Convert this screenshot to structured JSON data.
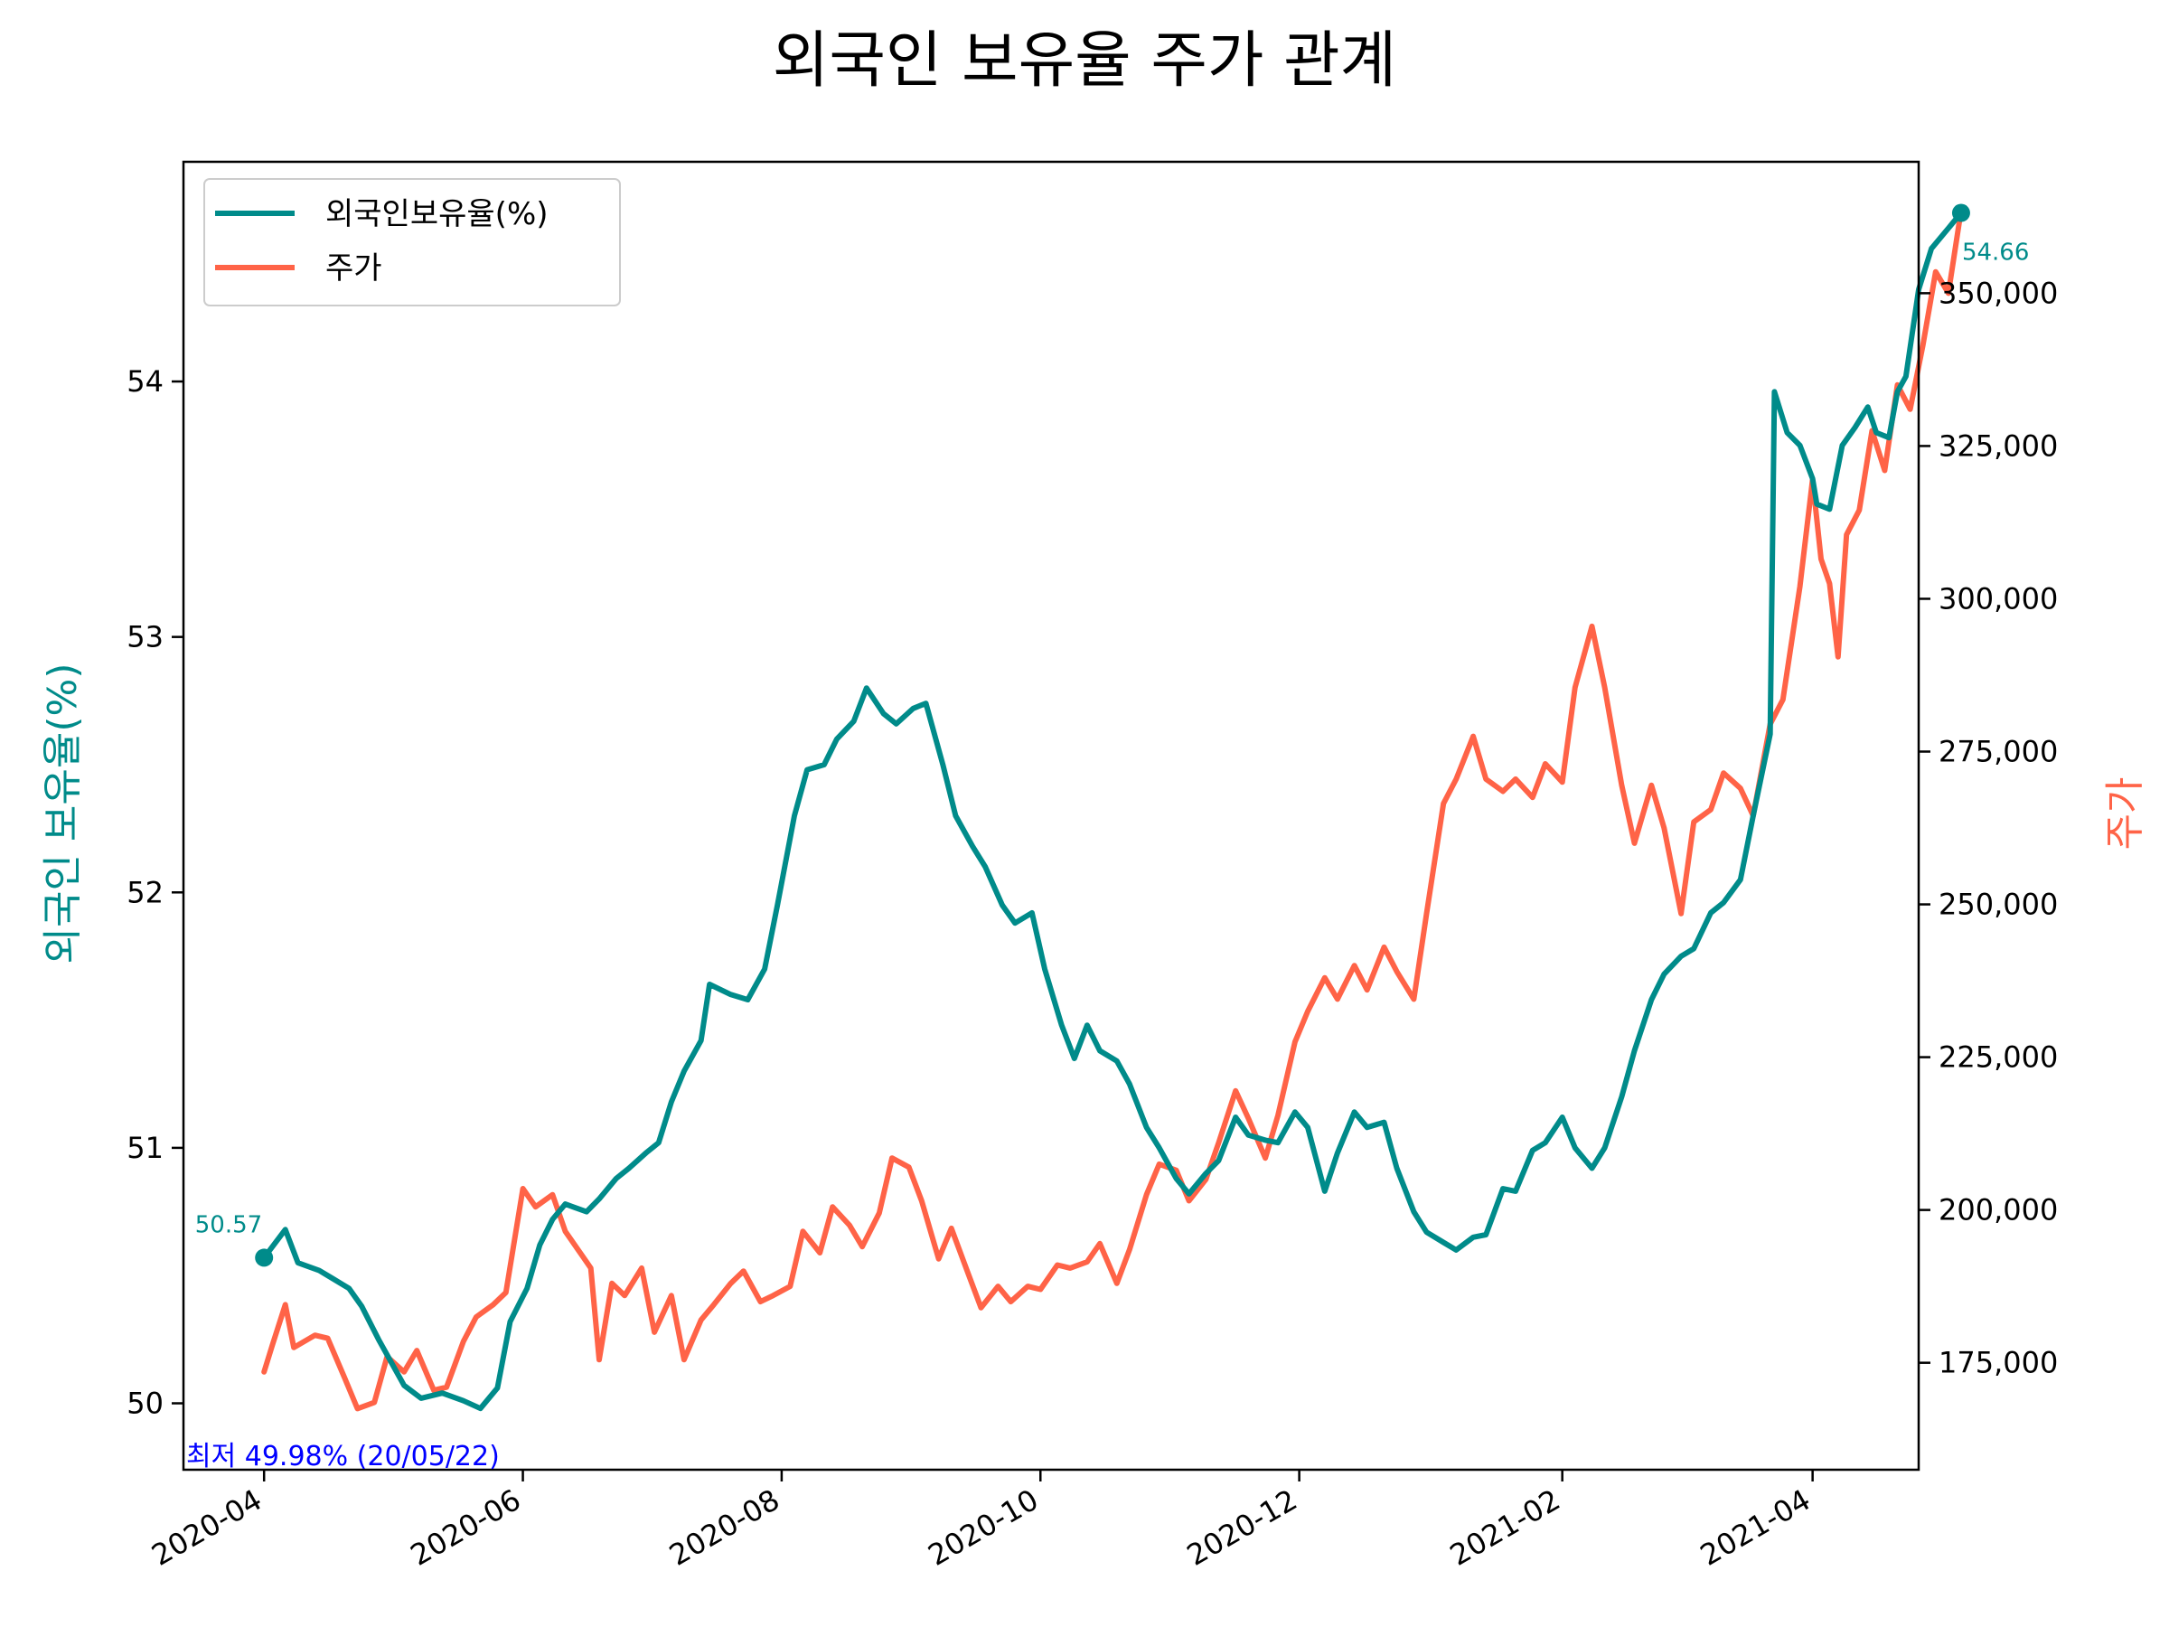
{
  "colors": {
    "foreign": "#008b8a",
    "price": "#ff6347",
    "min_label": "#0000ff",
    "axis": "#000000"
  },
  "chart_data": {
    "type": "line",
    "title": "외국인 보유율 주가 관계",
    "ylabel_left": "외국인 보유율(%)",
    "ylabel_right": "주가",
    "x_range": [
      "2020-03-13",
      "2021-04-26"
    ],
    "x_ticks": [
      "2020-04",
      "2020-06",
      "2020-08",
      "2020-10",
      "2020-12",
      "2021-02",
      "2021-04"
    ],
    "x_tick_dates": [
      "2020-04-01",
      "2020-06-01",
      "2020-08-01",
      "2020-10-01",
      "2020-12-01",
      "2021-02-01",
      "2021-04-01"
    ],
    "ylim_left": [
      49.74,
      54.86
    ],
    "yticks_left": [
      "50",
      "51",
      "52",
      "53",
      "54"
    ],
    "ylim_right": [
      157500,
      371500
    ],
    "yticks_right": [
      "175,000",
      "200,000",
      "225,000",
      "250,000",
      "275,000",
      "300,000",
      "325,000",
      "350,000"
    ],
    "legend_position": "upper left",
    "legend": [
      "외국인보유율(%)",
      "주가"
    ],
    "series": [
      {
        "name": "외국인보유율(%)",
        "axis": "left",
        "points": [
          [
            "2020-04-01",
            50.57
          ],
          [
            "2020-04-06",
            50.68
          ],
          [
            "2020-04-09",
            50.55
          ],
          [
            "2020-04-14",
            50.52
          ],
          [
            "2020-04-17",
            50.49
          ],
          [
            "2020-04-21",
            50.45
          ],
          [
            "2020-04-24",
            50.38
          ],
          [
            "2020-04-28",
            50.25
          ],
          [
            "2020-05-04",
            50.07
          ],
          [
            "2020-05-08",
            50.02
          ],
          [
            "2020-05-13",
            50.04
          ],
          [
            "2020-05-18",
            50.01
          ],
          [
            "2020-05-22",
            49.98
          ],
          [
            "2020-05-26",
            50.06
          ],
          [
            "2020-05-29",
            50.32
          ],
          [
            "2020-06-02",
            50.45
          ],
          [
            "2020-06-05",
            50.62
          ],
          [
            "2020-06-08",
            50.72
          ],
          [
            "2020-06-11",
            50.78
          ],
          [
            "2020-06-16",
            50.75
          ],
          [
            "2020-06-19",
            50.8
          ],
          [
            "2020-06-23",
            50.88
          ],
          [
            "2020-06-26",
            50.92
          ],
          [
            "2020-06-30",
            50.98
          ],
          [
            "2020-07-03",
            51.02
          ],
          [
            "2020-07-06",
            51.18
          ],
          [
            "2020-07-09",
            51.3
          ],
          [
            "2020-07-13",
            51.42
          ],
          [
            "2020-07-15",
            51.64
          ],
          [
            "2020-07-20",
            51.6
          ],
          [
            "2020-07-24",
            51.58
          ],
          [
            "2020-07-28",
            51.7
          ],
          [
            "2020-07-31",
            51.95
          ],
          [
            "2020-08-04",
            52.3
          ],
          [
            "2020-08-07",
            52.48
          ],
          [
            "2020-08-11",
            52.5
          ],
          [
            "2020-08-14",
            52.6
          ],
          [
            "2020-08-18",
            52.67
          ],
          [
            "2020-08-21",
            52.8
          ],
          [
            "2020-08-25",
            52.7
          ],
          [
            "2020-08-28",
            52.66
          ],
          [
            "2020-09-01",
            52.72
          ],
          [
            "2020-09-04",
            52.74
          ],
          [
            "2020-09-08",
            52.5
          ],
          [
            "2020-09-11",
            52.3
          ],
          [
            "2020-09-15",
            52.18
          ],
          [
            "2020-09-18",
            52.1
          ],
          [
            "2020-09-22",
            51.95
          ],
          [
            "2020-09-25",
            51.88
          ],
          [
            "2020-09-29",
            51.92
          ],
          [
            "2020-10-02",
            51.7
          ],
          [
            "2020-10-06",
            51.48
          ],
          [
            "2020-10-09",
            51.35
          ],
          [
            "2020-10-12",
            51.48
          ],
          [
            "2020-10-15",
            51.38
          ],
          [
            "2020-10-19",
            51.34
          ],
          [
            "2020-10-22",
            51.25
          ],
          [
            "2020-10-26",
            51.08
          ],
          [
            "2020-10-29",
            51.0
          ],
          [
            "2020-11-02",
            50.88
          ],
          [
            "2020-11-05",
            50.82
          ],
          [
            "2020-11-09",
            50.9
          ],
          [
            "2020-11-12",
            50.95
          ],
          [
            "2020-11-16",
            51.12
          ],
          [
            "2020-11-19",
            51.05
          ],
          [
            "2020-11-23",
            51.03
          ],
          [
            "2020-11-26",
            51.02
          ],
          [
            "2020-11-30",
            51.14
          ],
          [
            "2020-12-03",
            51.08
          ],
          [
            "2020-12-07",
            50.83
          ],
          [
            "2020-12-10",
            50.98
          ],
          [
            "2020-12-14",
            51.14
          ],
          [
            "2020-12-17",
            51.08
          ],
          [
            "2020-12-21",
            51.1
          ],
          [
            "2020-12-24",
            50.92
          ],
          [
            "2020-12-28",
            50.75
          ],
          [
            "2020-12-31",
            50.67
          ],
          [
            "2021-01-04",
            50.63
          ],
          [
            "2021-01-07",
            50.6
          ],
          [
            "2021-01-11",
            50.65
          ],
          [
            "2021-01-14",
            50.66
          ],
          [
            "2021-01-18",
            50.84
          ],
          [
            "2021-01-21",
            50.83
          ],
          [
            "2021-01-25",
            50.99
          ],
          [
            "2021-01-28",
            51.02
          ],
          [
            "2021-02-01",
            51.12
          ],
          [
            "2021-02-04",
            51.0
          ],
          [
            "2021-02-08",
            50.92
          ],
          [
            "2021-02-11",
            51.0
          ],
          [
            "2021-02-15",
            51.2
          ],
          [
            "2021-02-18",
            51.38
          ],
          [
            "2021-02-22",
            51.58
          ],
          [
            "2021-02-25",
            51.68
          ],
          [
            "2021-03-01",
            51.75
          ],
          [
            "2021-03-04",
            51.78
          ],
          [
            "2021-03-08",
            51.92
          ],
          [
            "2021-03-11",
            51.96
          ],
          [
            "2021-03-15",
            52.05
          ],
          [
            "2021-03-18",
            52.3
          ],
          [
            "2021-03-22",
            52.62
          ],
          [
            "2021-03-23",
            53.96
          ],
          [
            "2021-03-26",
            53.8
          ],
          [
            "2021-03-29",
            53.75
          ],
          [
            "2021-04-01",
            53.62
          ],
          [
            "2021-04-02",
            53.52
          ],
          [
            "2021-04-05",
            53.5
          ],
          [
            "2021-04-08",
            53.75
          ],
          [
            "2021-04-11",
            53.82
          ],
          [
            "2021-04-14",
            53.9
          ],
          [
            "2021-04-16",
            53.8
          ],
          [
            "2021-04-19",
            53.78
          ],
          [
            "2021-04-21",
            53.96
          ],
          [
            "2021-04-23",
            54.02
          ],
          [
            "2021-04-26",
            54.36
          ],
          [
            "2021-04-29",
            54.52
          ],
          [
            "2021-05-03",
            54.6
          ],
          [
            "2021-05-06",
            54.66
          ]
        ]
      },
      {
        "name": "주가",
        "axis": "right",
        "points": [
          [
            "2020-04-01",
            173500
          ],
          [
            "2020-04-03",
            178000
          ],
          [
            "2020-04-06",
            184500
          ],
          [
            "2020-04-08",
            177500
          ],
          [
            "2020-04-13",
            179500
          ],
          [
            "2020-04-16",
            179000
          ],
          [
            "2020-04-20",
            172500
          ],
          [
            "2020-04-23",
            167500
          ],
          [
            "2020-04-27",
            168500
          ],
          [
            "2020-04-30",
            176000
          ],
          [
            "2020-05-04",
            173500
          ],
          [
            "2020-05-07",
            177000
          ],
          [
            "2020-05-11",
            170500
          ],
          [
            "2020-05-14",
            171000
          ],
          [
            "2020-05-18",
            178500
          ],
          [
            "2020-05-21",
            182500
          ],
          [
            "2020-05-25",
            184500
          ],
          [
            "2020-05-28",
            186500
          ],
          [
            "2020-06-01",
            203500
          ],
          [
            "2020-06-04",
            200500
          ],
          [
            "2020-06-08",
            202500
          ],
          [
            "2020-06-11",
            196500
          ],
          [
            "2020-06-15",
            192500
          ],
          [
            "2020-06-17",
            190500
          ],
          [
            "2020-06-19",
            175500
          ],
          [
            "2020-06-22",
            188000
          ],
          [
            "2020-06-25",
            186000
          ],
          [
            "2020-06-29",
            190500
          ],
          [
            "2020-07-02",
            180000
          ],
          [
            "2020-07-06",
            186000
          ],
          [
            "2020-07-09",
            175500
          ],
          [
            "2020-07-13",
            182000
          ],
          [
            "2020-07-16",
            184500
          ],
          [
            "2020-07-20",
            188000
          ],
          [
            "2020-07-23",
            190000
          ],
          [
            "2020-07-27",
            185000
          ],
          [
            "2020-07-30",
            186000
          ],
          [
            "2020-08-03",
            187500
          ],
          [
            "2020-08-06",
            196500
          ],
          [
            "2020-08-10",
            193000
          ],
          [
            "2020-08-13",
            200500
          ],
          [
            "2020-08-17",
            197500
          ],
          [
            "2020-08-20",
            194000
          ],
          [
            "2020-08-24",
            199500
          ],
          [
            "2020-08-27",
            208500
          ],
          [
            "2020-08-31",
            207000
          ],
          [
            "2020-09-03",
            201500
          ],
          [
            "2020-09-07",
            192000
          ],
          [
            "2020-09-10",
            197000
          ],
          [
            "2020-09-14",
            189500
          ],
          [
            "2020-09-17",
            184000
          ],
          [
            "2020-09-21",
            187500
          ],
          [
            "2020-09-24",
            185000
          ],
          [
            "2020-09-28",
            187500
          ],
          [
            "2020-10-01",
            187000
          ],
          [
            "2020-10-05",
            191000
          ],
          [
            "2020-10-08",
            190500
          ],
          [
            "2020-10-12",
            191500
          ],
          [
            "2020-10-15",
            194500
          ],
          [
            "2020-10-19",
            188000
          ],
          [
            "2020-10-22",
            193500
          ],
          [
            "2020-10-26",
            202500
          ],
          [
            "2020-10-29",
            207500
          ],
          [
            "2020-11-02",
            206500
          ],
          [
            "2020-11-05",
            201500
          ],
          [
            "2020-11-09",
            205000
          ],
          [
            "2020-11-12",
            211000
          ],
          [
            "2020-11-16",
            219500
          ],
          [
            "2020-11-19",
            215000
          ],
          [
            "2020-11-23",
            208500
          ],
          [
            "2020-11-26",
            215500
          ],
          [
            "2020-11-30",
            227500
          ],
          [
            "2020-12-03",
            232500
          ],
          [
            "2020-12-07",
            238000
          ],
          [
            "2020-12-10",
            234500
          ],
          [
            "2020-12-14",
            240000
          ],
          [
            "2020-12-17",
            236000
          ],
          [
            "2020-12-21",
            243000
          ],
          [
            "2020-12-24",
            239000
          ],
          [
            "2020-12-28",
            234500
          ],
          [
            "2020-12-31",
            248500
          ],
          [
            "2021-01-04",
            266500
          ],
          [
            "2021-01-07",
            270500
          ],
          [
            "2021-01-11",
            277500
          ],
          [
            "2021-01-14",
            270500
          ],
          [
            "2021-01-18",
            268500
          ],
          [
            "2021-01-21",
            270500
          ],
          [
            "2021-01-25",
            267500
          ],
          [
            "2021-01-28",
            273000
          ],
          [
            "2021-02-01",
            270000
          ],
          [
            "2021-02-04",
            285500
          ],
          [
            "2021-02-08",
            295500
          ],
          [
            "2021-02-11",
            285500
          ],
          [
            "2021-02-15",
            269500
          ],
          [
            "2021-02-18",
            260000
          ],
          [
            "2021-02-22",
            269500
          ],
          [
            "2021-02-25",
            262500
          ],
          [
            "2021-03-01",
            248500
          ],
          [
            "2021-03-04",
            263500
          ],
          [
            "2021-03-08",
            265500
          ],
          [
            "2021-03-11",
            271500
          ],
          [
            "2021-03-15",
            269000
          ],
          [
            "2021-03-18",
            264500
          ],
          [
            "2021-03-22",
            279500
          ],
          [
            "2021-03-25",
            283500
          ],
          [
            "2021-03-29",
            302000
          ],
          [
            "2021-04-01",
            319500
          ],
          [
            "2021-04-03",
            306500
          ],
          [
            "2021-04-05",
            302500
          ],
          [
            "2021-04-07",
            290500
          ],
          [
            "2021-04-09",
            310500
          ],
          [
            "2021-04-12",
            314500
          ],
          [
            "2021-04-15",
            327500
          ],
          [
            "2021-04-18",
            321000
          ],
          [
            "2021-04-21",
            335000
          ],
          [
            "2021-04-24",
            331000
          ],
          [
            "2021-04-27",
            341500
          ],
          [
            "2021-04-30",
            353500
          ],
          [
            "2021-05-03",
            350000
          ],
          [
            "2021-05-06",
            363500
          ]
        ]
      }
    ],
    "annotations": [
      {
        "text": "50.57",
        "date": "2020-04-01",
        "value": 50.57,
        "axis": "left"
      },
      {
        "text": "54.66",
        "date": "2021-05-06",
        "value": 54.66,
        "axis": "left"
      },
      {
        "text": "최저  49.98% (20/05/22)",
        "date": "2020-05-22",
        "value": 49.98,
        "axis": "left"
      }
    ]
  }
}
